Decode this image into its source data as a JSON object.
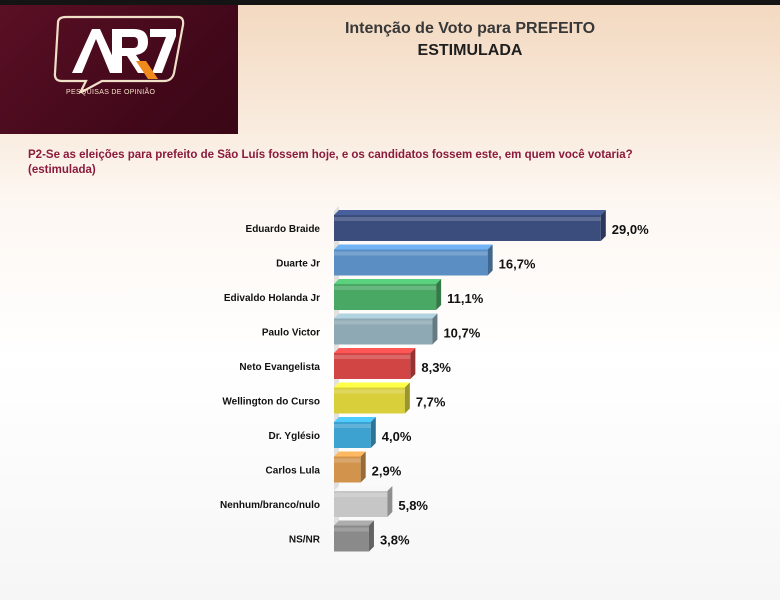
{
  "header": {
    "logo_text": "AR7",
    "logo_tagline": "PESQUISAS DE OPINIÃO",
    "title": "Intenção de Voto para PREFEITO",
    "subtitle": "ESTIMULADA"
  },
  "question": {
    "line1": "P2-Se as eleições para prefeito de São Luís fossem hoje, e os candidatos fossem este, em quem você votaria?",
    "line2": "(estimulada)"
  },
  "chart_data": {
    "type": "bar",
    "orientation": "horizontal",
    "categories": [
      "Eduardo Braide",
      "Duarte Jr",
      "Edivaldo Holanda Jr",
      "Paulo Victor",
      "Neto Evangelista",
      "Wellington do Curso",
      "Dr. Yglésio",
      "Carlos Lula",
      "Nenhum/branco/nulo",
      "NS/NR"
    ],
    "values": [
      29.0,
      16.7,
      11.1,
      10.7,
      8.3,
      7.7,
      4.0,
      2.9,
      5.8,
      3.8
    ],
    "value_labels": [
      "29,0%",
      "16,7%",
      "11,1%",
      "10,7%",
      "8,3%",
      "7,7%",
      "4,0%",
      "2,9%",
      "5,8%",
      "3,8%"
    ],
    "colors": [
      "#3b4d7d",
      "#5b8fc4",
      "#48a864",
      "#8ea9b3",
      "#d24545",
      "#d8cf3a",
      "#3ea2d1",
      "#d2944d",
      "#c6c6c6",
      "#8a8a8a"
    ],
    "xlim": [
      0,
      30
    ],
    "grid": false,
    "legend": "none"
  }
}
